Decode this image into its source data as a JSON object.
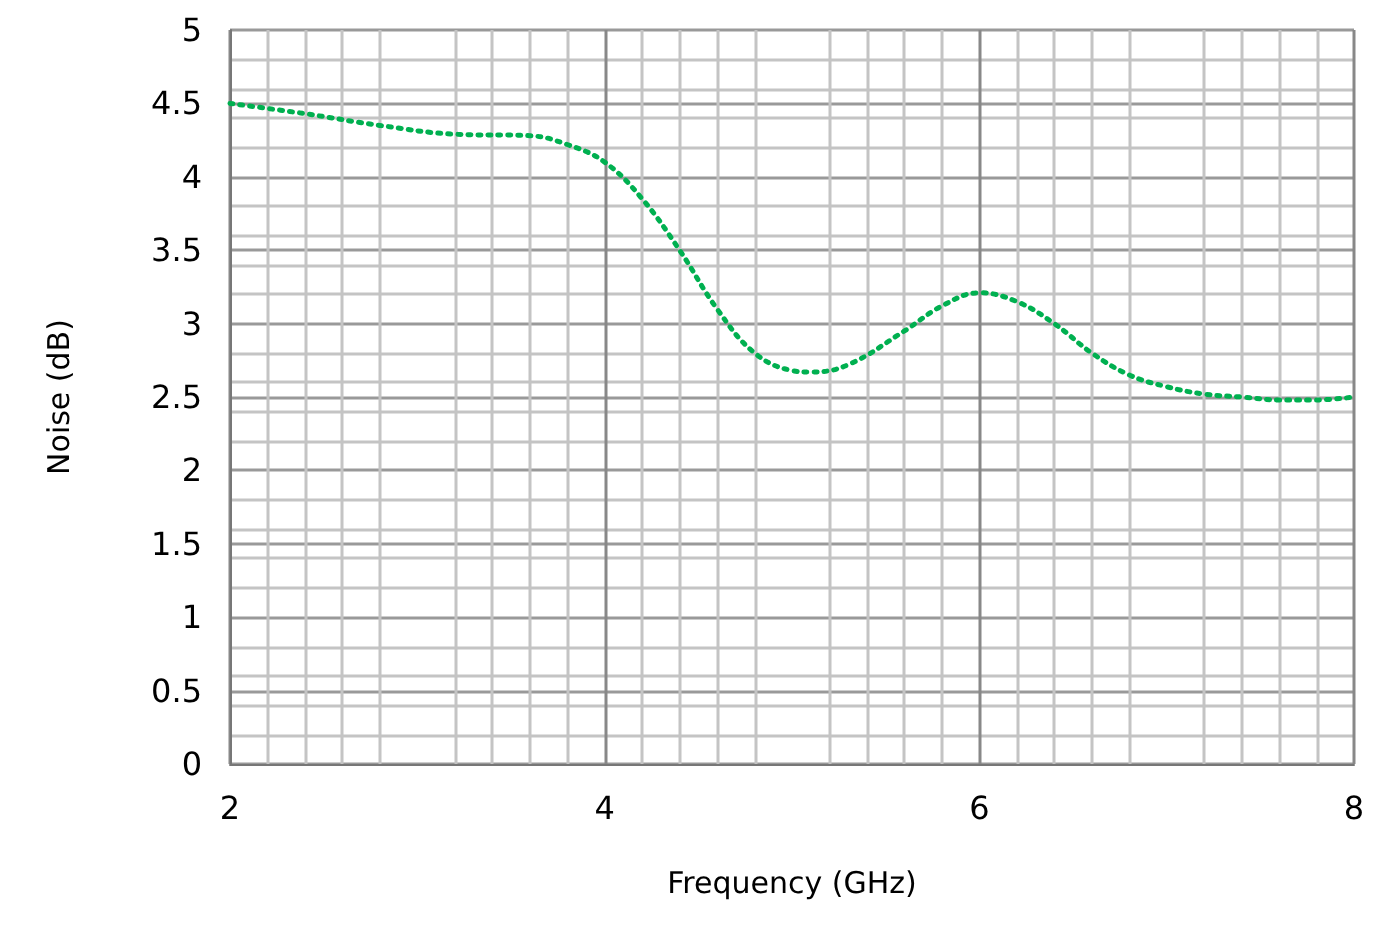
{
  "chart_data": {
    "type": "line",
    "xlabel": "Frequency (GHz)",
    "ylabel": "Noise (dB)",
    "x": [
      2,
      2.4,
      2.8,
      3.2,
      3.6,
      3.8,
      4,
      4.2,
      4.4,
      4.6,
      4.8,
      5,
      5.1,
      5.3,
      5.6,
      5.8,
      6,
      6.2,
      6.4,
      6.6,
      6.8,
      7,
      7.2,
      7.4,
      7.6,
      7.8,
      8
    ],
    "series": [
      {
        "color": "#00b050",
        "values": [
          4.5,
          4.43,
          4.35,
          4.29,
          4.28,
          4.22,
          4.1,
          3.85,
          3.5,
          3.1,
          2.8,
          2.68,
          2.67,
          2.72,
          2.95,
          3.12,
          3.21,
          3.15,
          3.0,
          2.8,
          2.65,
          2.57,
          2.52,
          2.5,
          2.48,
          2.48,
          2.5
        ]
      }
    ],
    "xlim": [
      2,
      8
    ],
    "xticks": [
      2,
      4,
      6,
      8
    ],
    "ylim": [
      0,
      5
    ],
    "yticks": [
      0,
      0.5,
      1,
      1.5,
      2,
      2.5,
      3,
      3.5,
      4,
      4.5,
      5
    ],
    "grid": true,
    "marker": "none",
    "line_style": "dotted"
  }
}
